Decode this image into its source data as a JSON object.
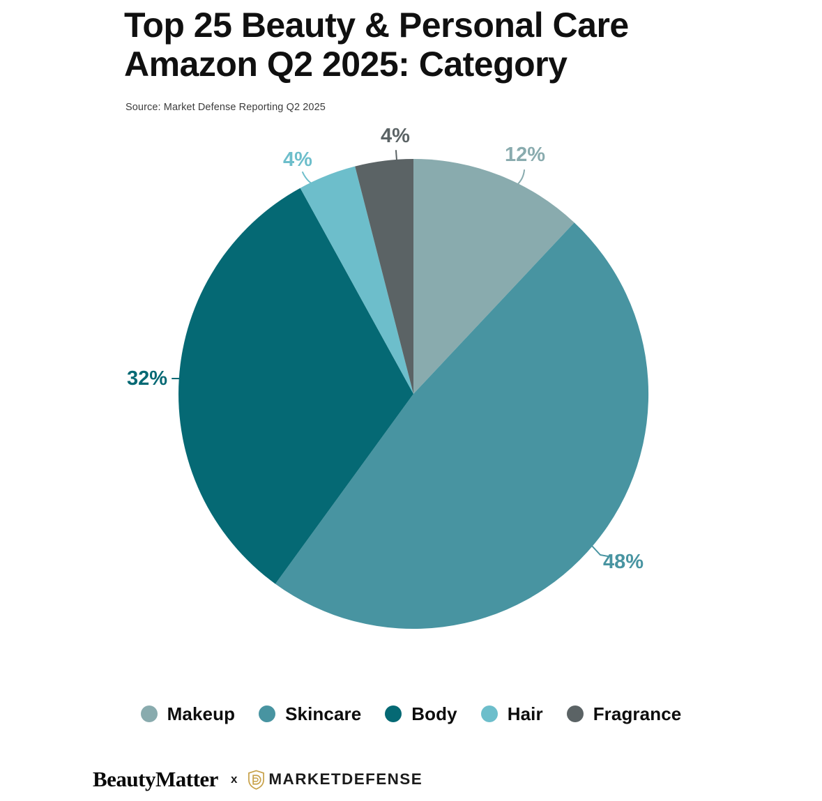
{
  "header": {
    "title": "Top 25 Beauty & Personal Care\nAmazon Q2 2025: Category",
    "source": "Source: Market Defense Reporting Q2 2025"
  },
  "chart_data": {
    "type": "pie",
    "title": "Top 25 Beauty & Personal Care Amazon Q2 2025: Category",
    "categories": [
      "Makeup",
      "Skincare",
      "Body",
      "Hair",
      "Fragrance"
    ],
    "values": [
      12,
      48,
      32,
      4,
      4
    ],
    "unit": "%",
    "slice_labels": [
      "12%",
      "48%",
      "32%",
      "4%",
      "4%"
    ],
    "colors": [
      "#89ABAE",
      "#4894A1",
      "#056974",
      "#6DBECB",
      "#5B6365"
    ],
    "start_angle_deg": 0,
    "direction": "clockwise",
    "legend_position": "bottom",
    "grid": false
  },
  "legend": {
    "items": [
      {
        "label": "Makeup",
        "color": "#89ABAE"
      },
      {
        "label": "Skincare",
        "color": "#4894A1"
      },
      {
        "label": "Body",
        "color": "#056974"
      },
      {
        "label": "Hair",
        "color": "#6DBECB"
      },
      {
        "label": "Fragrance",
        "color": "#5B6365"
      }
    ]
  },
  "footer": {
    "brand_left": "BeautyMatter",
    "separator": "x",
    "brand_right": "MARKETDEFENSE",
    "brand_right_icon": "shield-d-icon",
    "icon_color": "#C8A24B"
  }
}
